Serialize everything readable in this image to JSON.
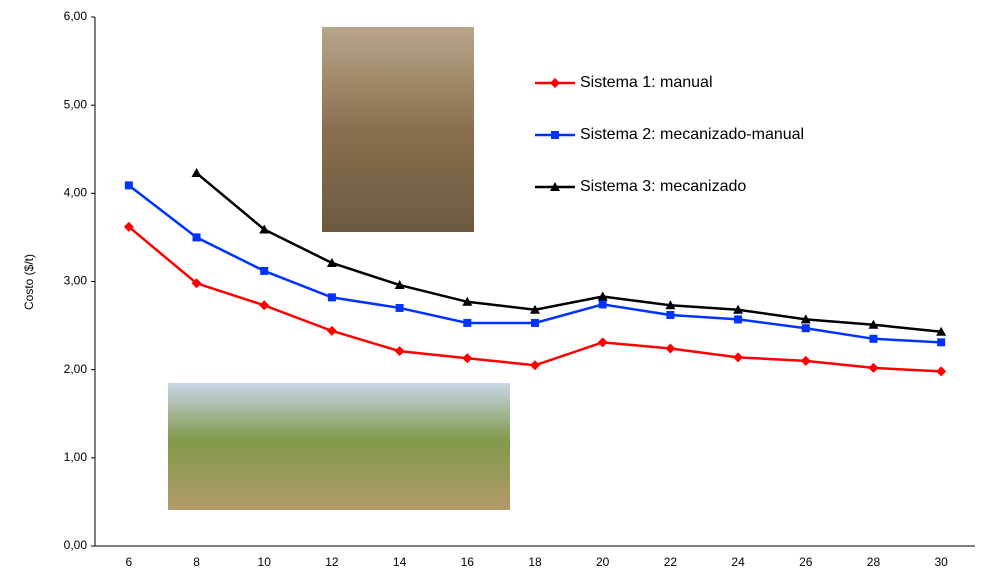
{
  "chart_data": {
    "type": "line",
    "y_label": "Costo  ($/t)",
    "categories": [
      "6",
      "8",
      "10",
      "12",
      "14",
      "16",
      "18",
      "20",
      "22",
      "24",
      "26",
      "28",
      "30"
    ],
    "ylim": [
      0,
      6
    ],
    "yticks": [
      {
        "value": 0,
        "label": "0,00"
      },
      {
        "value": 1,
        "label": "1,00"
      },
      {
        "value": 2,
        "label": "2,00"
      },
      {
        "value": 3,
        "label": "3,00"
      },
      {
        "value": 4,
        "label": "4,00"
      },
      {
        "value": 5,
        "label": "5,00"
      },
      {
        "value": 6,
        "label": "6,00"
      }
    ],
    "grid": false,
    "series": [
      {
        "name": "Sistema 1: manual",
        "color": "#ff0000",
        "marker": "diamond",
        "values": [
          3.62,
          2.98,
          2.73,
          2.44,
          2.21,
          2.13,
          2.05,
          2.31,
          2.24,
          2.14,
          2.1,
          2.02,
          1.98
        ]
      },
      {
        "name": "Sistema 2: mecanizado-manual",
        "color": "#0033ff",
        "marker": "square",
        "values": [
          4.09,
          3.5,
          3.12,
          2.82,
          2.7,
          2.53,
          2.53,
          2.74,
          2.62,
          2.57,
          2.47,
          2.35,
          2.31
        ]
      },
      {
        "name": "Sistema 3: mecanizado",
        "color": "#000000",
        "marker": "triangle",
        "values": [
          null,
          4.23,
          3.59,
          3.21,
          2.96,
          2.77,
          2.68,
          2.83,
          2.73,
          2.68,
          2.57,
          2.51,
          2.43
        ]
      }
    ]
  }
}
